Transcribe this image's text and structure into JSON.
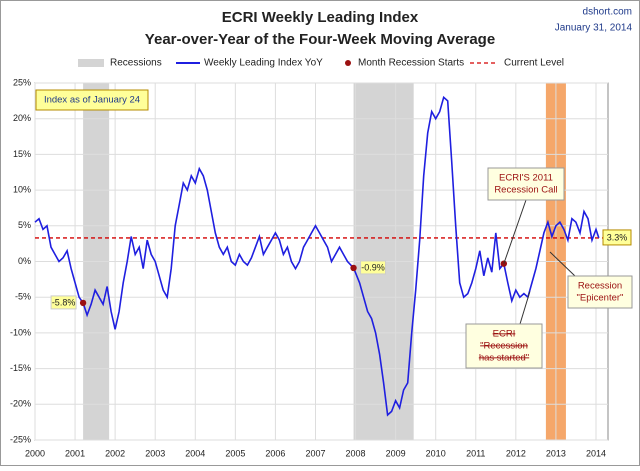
{
  "chart_data": {
    "type": "line",
    "title": "ECRI Weekly Leading Index",
    "subtitle": "Year-over-Year of the Four-Week Moving Average",
    "source": "dshort.com",
    "date": "January 31, 2014",
    "xlim": [
      2000,
      2014.3
    ],
    "xticks": [
      2000,
      2001,
      2002,
      2003,
      2004,
      2005,
      2006,
      2007,
      2008,
      2009,
      2010,
      2011,
      2012,
      2013,
      2014
    ],
    "ylim": [
      -25,
      25
    ],
    "yticks": [
      {
        "value": -25,
        "label": "-25%"
      },
      {
        "value": -20,
        "label": "-20%"
      },
      {
        "value": -15,
        "label": "-15%"
      },
      {
        "value": -10,
        "label": "-10%"
      },
      {
        "value": -5,
        "label": "-5%"
      },
      {
        "value": 0,
        "label": "0%"
      },
      {
        "value": 5,
        "label": "5%"
      },
      {
        "value": 10,
        "label": "10%"
      },
      {
        "value": 15,
        "label": "15%"
      },
      {
        "value": 20,
        "label": "20%"
      },
      {
        "value": 25,
        "label": "25%"
      }
    ],
    "grid": true,
    "recessions": {
      "name": "Recessions",
      "color": "#d4d4d4",
      "ranges": [
        [
          2001.2,
          2001.85
        ],
        [
          2007.95,
          2009.45
        ]
      ]
    },
    "highlights": {
      "color": "#f5a76a",
      "ranges": [
        [
          2012.75,
          2013.25
        ]
      ]
    },
    "series": [
      {
        "name": "Weekly Leading Index YoY",
        "color": "#1f1fe0",
        "x": [
          2000.0,
          2000.1,
          2000.2,
          2000.3,
          2000.4,
          2000.5,
          2000.6,
          2000.7,
          2000.8,
          2000.9,
          2001.0,
          2001.1,
          2001.2,
          2001.3,
          2001.4,
          2001.5,
          2001.6,
          2001.7,
          2001.8,
          2001.9,
          2002.0,
          2002.1,
          2002.2,
          2002.3,
          2002.4,
          2002.5,
          2002.6,
          2002.7,
          2002.8,
          2002.9,
          2003.0,
          2003.1,
          2003.2,
          2003.3,
          2003.4,
          2003.5,
          2003.6,
          2003.7,
          2003.8,
          2003.9,
          2004.0,
          2004.1,
          2004.2,
          2004.3,
          2004.4,
          2004.5,
          2004.6,
          2004.7,
          2004.8,
          2004.9,
          2005.0,
          2005.1,
          2005.2,
          2005.3,
          2005.4,
          2005.5,
          2005.6,
          2005.7,
          2005.8,
          2005.9,
          2006.0,
          2006.1,
          2006.2,
          2006.3,
          2006.4,
          2006.5,
          2006.6,
          2006.7,
          2006.8,
          2006.9,
          2007.0,
          2007.1,
          2007.2,
          2007.3,
          2007.4,
          2007.5,
          2007.6,
          2007.7,
          2007.8,
          2007.95,
          2008.1,
          2008.2,
          2008.3,
          2008.4,
          2008.5,
          2008.6,
          2008.7,
          2008.8,
          2008.9,
          2009.0,
          2009.1,
          2009.2,
          2009.3,
          2009.4,
          2009.5,
          2009.6,
          2009.7,
          2009.8,
          2009.9,
          2010.0,
          2010.1,
          2010.2,
          2010.3,
          2010.4,
          2010.5,
          2010.6,
          2010.7,
          2010.8,
          2010.9,
          2011.0,
          2011.1,
          2011.2,
          2011.3,
          2011.4,
          2011.5,
          2011.6,
          2011.7,
          2011.8,
          2011.9,
          2012.0,
          2012.1,
          2012.2,
          2012.3,
          2012.4,
          2012.5,
          2012.6,
          2012.7,
          2012.8,
          2012.9,
          2013.0,
          2013.1,
          2013.2,
          2013.3,
          2013.4,
          2013.5,
          2013.6,
          2013.7,
          2013.8,
          2013.9,
          2014.0,
          2014.07
        ],
        "values": [
          5.5,
          6,
          4.5,
          5,
          2,
          1,
          0,
          0.5,
          1.5,
          -1,
          -3,
          -5,
          -5.8,
          -7.5,
          -6,
          -4,
          -5,
          -6,
          -3.5,
          -7,
          -9.5,
          -7,
          -3,
          0,
          3.5,
          1,
          2,
          -1,
          3,
          1,
          0,
          -2,
          -4,
          -5,
          -1,
          5,
          8,
          11,
          10,
          12,
          11,
          13,
          12,
          10,
          7,
          4,
          2,
          1,
          2,
          0,
          -0.5,
          1,
          0,
          -0.5,
          0.5,
          2,
          3.5,
          1,
          2,
          3,
          4,
          3,
          1,
          2,
          0,
          -1,
          0,
          2,
          3,
          4,
          5,
          4,
          3,
          2,
          0,
          1,
          2,
          1,
          0,
          -0.9,
          -3,
          -5,
          -7,
          -8,
          -10,
          -13,
          -17,
          -21.5,
          -21,
          -19.5,
          -20.5,
          -18,
          -17,
          -10,
          -4,
          3,
          12,
          18,
          21,
          20,
          21,
          23,
          22.5,
          14,
          5,
          -3,
          -5,
          -4.5,
          -3,
          -1,
          1.5,
          -2,
          0.5,
          -1.5,
          4,
          -1,
          -0.3,
          -3,
          -5.5,
          -4,
          -5,
          -4.5,
          -5,
          -3,
          -1,
          1.5,
          4,
          5.5,
          3.5,
          5,
          5.5,
          4.5,
          3,
          6,
          5.5,
          4,
          7,
          6,
          3,
          4.5,
          3.3
        ]
      },
      {
        "name": "Month Recession Starts",
        "color": "#9b1010",
        "x": [
          2001.2,
          2007.95,
          2011.7
        ],
        "values": [
          -5.8,
          -0.9,
          -0.3
        ],
        "value_labels": [
          "-5.8%",
          "-0.9%",
          null
        ]
      },
      {
        "name": "Current Level",
        "color": "#d40000",
        "value": 3.3,
        "value_label": "3.3%"
      }
    ],
    "annotations": [
      {
        "lines": [
          "Index as of January 24"
        ]
      },
      {
        "lines": [
          "ECRI'S 2011",
          "Recession Call"
        ]
      },
      {
        "lines": [
          "ECRI",
          "\"Recession",
          "has started\""
        ]
      },
      {
        "lines": [
          "Recession",
          "\"Epicenter\""
        ]
      }
    ]
  }
}
